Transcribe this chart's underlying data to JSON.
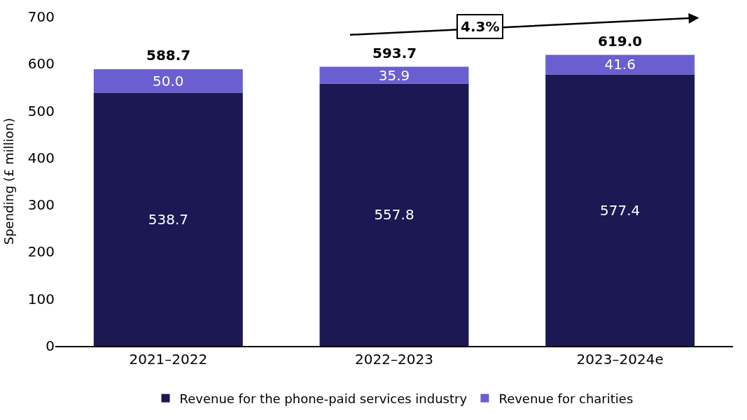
{
  "chart_data": {
    "type": "bar",
    "stacked": true,
    "ylabel": "Spending (£ million)",
    "categories": [
      "2021–2022",
      "2022–2023",
      "2023–2024e"
    ],
    "series": [
      {
        "name": "Revenue for the phone-paid services industry",
        "color": "#1b1853",
        "values": [
          538.7,
          557.8,
          577.4
        ],
        "value_labels": [
          "538.7",
          "557.8",
          "577.4"
        ]
      },
      {
        "name": "Revenue for charities",
        "color": "#6a5fd1",
        "values": [
          50.0,
          35.9,
          41.6
        ],
        "value_labels": [
          "50.0",
          "35.9",
          "41.6"
        ]
      }
    ],
    "totals": [
      "588.7",
      "593.7",
      "619.0"
    ],
    "annotations": [
      "4.3%"
    ],
    "ylim": [
      0,
      700
    ],
    "yticks": [
      0,
      100,
      200,
      300,
      400,
      500,
      600,
      700
    ],
    "legend": "bottom"
  }
}
